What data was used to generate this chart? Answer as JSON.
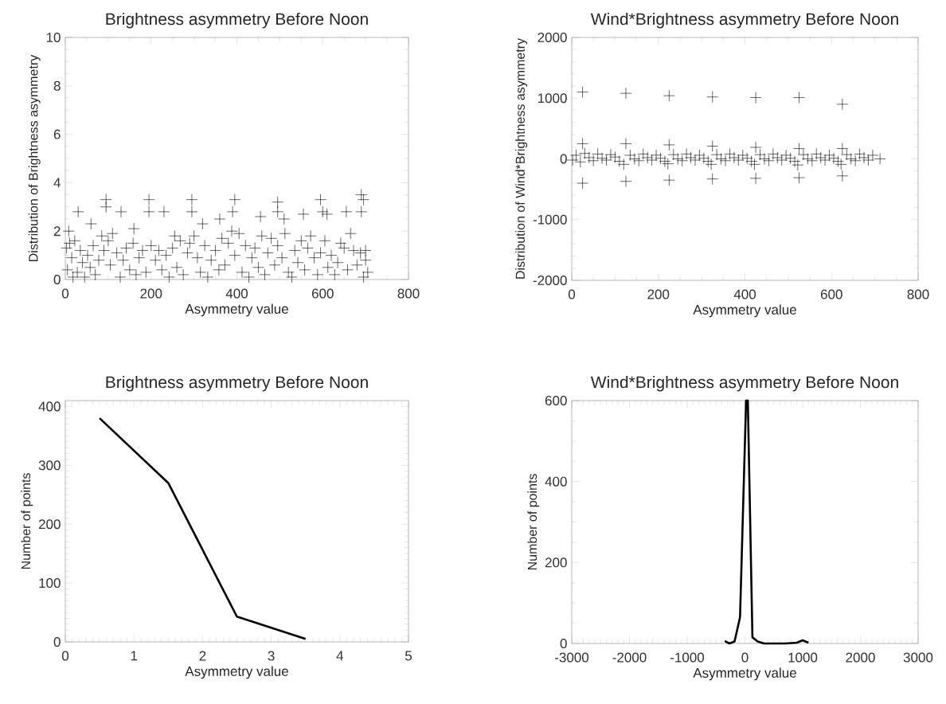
{
  "chart_data": [
    {
      "type": "scatter",
      "title": "Brightness asymmetry Before Noon",
      "xlabel": "Asymmetry value",
      "ylabel": "Distribution of Brightness asymmetry",
      "xlim": [
        0,
        800
      ],
      "xticks": [
        0,
        200,
        400,
        600,
        800
      ],
      "ylim": [
        0,
        10
      ],
      "yticks": [
        0,
        2,
        4,
        6,
        8,
        10
      ],
      "marker": "cross",
      "color": "#000000",
      "x": [
        3,
        5,
        8,
        10,
        15,
        18,
        22,
        28,
        30,
        35,
        40,
        45,
        52,
        58,
        60,
        65,
        70,
        78,
        85,
        90,
        95,
        95,
        100,
        105,
        110,
        120,
        128,
        130,
        135,
        142,
        150,
        158,
        160,
        165,
        172,
        180,
        188,
        195,
        195,
        200,
        210,
        218,
        225,
        230,
        235,
        242,
        250,
        255,
        260,
        268,
        275,
        285,
        290,
        295,
        295,
        300,
        308,
        315,
        320,
        325,
        332,
        340,
        350,
        358,
        360,
        365,
        372,
        380,
        388,
        390,
        395,
        395,
        405,
        412,
        420,
        428,
        435,
        442,
        450,
        455,
        458,
        465,
        472,
        480,
        488,
        495,
        495,
        495,
        505,
        510,
        512,
        520,
        528,
        535,
        542,
        550,
        555,
        558,
        565,
        572,
        580,
        588,
        595,
        595,
        600,
        605,
        610,
        612,
        620,
        628,
        635,
        642,
        650,
        655,
        658,
        665,
        672,
        680,
        688,
        690,
        690,
        695,
        695,
        700,
        700,
        705
      ],
      "values": [
        1.3,
        0.4,
        2.0,
        1.5,
        0.9,
        0.1,
        1.6,
        0.3,
        2.8,
        1.2,
        0.7,
        0.1,
        1.0,
        0.5,
        2.3,
        1.4,
        0.2,
        0.8,
        1.8,
        1.2,
        3.3,
        3.0,
        1.6,
        0.6,
        1.9,
        1.1,
        0.1,
        2.8,
        0.8,
        1.3,
        0.4,
        1.5,
        2.1,
        0.2,
        0.9,
        1.2,
        0.3,
        3.3,
        2.8,
        1.4,
        0.8,
        1.2,
        0.4,
        2.8,
        1.0,
        0.1,
        1.3,
        1.8,
        0.5,
        1.6,
        0.2,
        1.1,
        1.5,
        3.3,
        2.8,
        1.8,
        0.9,
        0.3,
        2.3,
        1.4,
        0.1,
        0.8,
        1.2,
        0.4,
        2.5,
        1.7,
        0.6,
        1.5,
        2.0,
        2.8,
        3.3,
        1.0,
        1.9,
        0.3,
        1.4,
        0.1,
        0.9,
        1.3,
        0.5,
        2.6,
        1.8,
        0.2,
        1.1,
        1.7,
        0.6,
        3.2,
        2.8,
        1.4,
        0.9,
        2.5,
        1.9,
        0.3,
        0.1,
        1.2,
        0.7,
        1.6,
        2.7,
        0.4,
        1.3,
        1.8,
        0.9,
        0.2,
        3.3,
        1.1,
        2.8,
        1.6,
        2.7,
        0.5,
        1.0,
        0.2,
        0.7,
        1.5,
        1.3,
        2.8,
        0.4,
        1.9,
        1.2,
        0.6,
        1.1,
        3.5,
        2.8,
        3.3,
        0.1,
        1.2,
        0.8,
        0.3
      ]
    },
    {
      "type": "scatter",
      "title": "Wind*Brightness asymmetry Before Noon",
      "xlabel": "Asymmetry value",
      "ylabel": "Distribution of Wind*Brightness asymmetry",
      "xlim": [
        0,
        800
      ],
      "xticks": [
        0,
        200,
        400,
        600,
        800
      ],
      "ylim": [
        -2000,
        2000
      ],
      "yticks": [
        -2000,
        -1000,
        0,
        1000,
        2000
      ],
      "marker": "cross",
      "color": "#000000",
      "x": [
        2,
        10,
        20,
        25,
        25,
        25,
        30,
        40,
        50,
        60,
        70,
        80,
        90,
        100,
        110,
        120,
        125,
        125,
        125,
        135,
        145,
        155,
        165,
        175,
        185,
        195,
        205,
        215,
        222,
        225,
        225,
        225,
        235,
        245,
        255,
        265,
        275,
        285,
        295,
        305,
        315,
        322,
        325,
        325,
        325,
        335,
        345,
        355,
        365,
        375,
        385,
        395,
        405,
        415,
        422,
        425,
        425,
        425,
        435,
        445,
        455,
        465,
        475,
        485,
        495,
        505,
        515,
        522,
        525,
        525,
        525,
        535,
        545,
        555,
        565,
        575,
        585,
        595,
        605,
        615,
        622,
        625,
        625,
        625,
        635,
        645,
        655,
        665,
        675,
        685,
        695,
        712
      ],
      "values": [
        -20,
        60,
        -50,
        1100,
        250,
        -400,
        90,
        20,
        -30,
        80,
        10,
        -20,
        70,
        30,
        -40,
        -90,
        1080,
        250,
        -370,
        60,
        0,
        -30,
        80,
        20,
        -20,
        60,
        10,
        -40,
        -80,
        1040,
        230,
        -350,
        70,
        0,
        -30,
        80,
        20,
        -20,
        60,
        10,
        -40,
        -90,
        1020,
        210,
        -330,
        70,
        0,
        -30,
        80,
        20,
        -20,
        60,
        10,
        -40,
        -90,
        1010,
        190,
        -320,
        70,
        0,
        -30,
        80,
        20,
        -20,
        60,
        10,
        -40,
        -100,
        1010,
        170,
        -310,
        70,
        0,
        -30,
        80,
        20,
        -20,
        60,
        10,
        -40,
        -90,
        900,
        170,
        -280,
        70,
        0,
        -30,
        80,
        20,
        -20,
        60,
        0
      ]
    },
    {
      "type": "line",
      "title": "Brightness asymmetry Before Noon",
      "xlabel": "Asymmetry value",
      "ylabel": "Number of points",
      "xlim": [
        0,
        5
      ],
      "xticks": [
        0,
        1,
        2,
        3,
        4,
        5
      ],
      "ylim": [
        0,
        410
      ],
      "yticks": [
        0,
        100,
        200,
        300,
        400
      ],
      "color": "#000000",
      "x": [
        0.5,
        1.5,
        2.5,
        3.5
      ],
      "values": [
        380,
        270,
        43,
        5
      ]
    },
    {
      "type": "line",
      "title": "Wind*Brightness asymmetry Before Noon",
      "xlabel": "Asymmetry value",
      "ylabel": "Number of points",
      "xlim": [
        -3000,
        3000
      ],
      "xticks": [
        -3000,
        -2000,
        -1000,
        0,
        1000,
        2000,
        3000
      ],
      "ylim": [
        0,
        600
      ],
      "yticks": [
        0,
        200,
        400,
        600
      ],
      "color": "#000000",
      "x": [
        -350,
        -270,
        -180,
        -85,
        20,
        50,
        130,
        220,
        330,
        500,
        700,
        900,
        1000,
        1100
      ],
      "values": [
        6,
        0,
        5,
        65,
        600,
        600,
        15,
        5,
        0,
        0,
        0,
        2,
        8,
        2
      ]
    }
  ]
}
